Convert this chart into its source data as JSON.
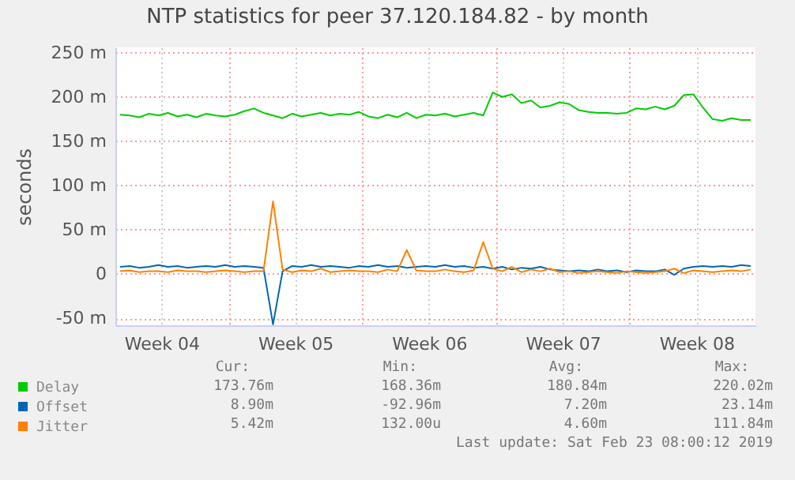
{
  "chart_data": {
    "type": "line",
    "title": "NTP statistics for peer 37.120.184.82 - by month",
    "ylabel": "seconds",
    "x": [
      "2019-01-21T08:00",
      "2019-01-21T20:00",
      "2019-01-22T08:00",
      "2019-01-22T20:00",
      "2019-01-23T08:00",
      "2019-01-23T20:00",
      "2019-01-24T08:00",
      "2019-01-24T20:00",
      "2019-01-25T08:00",
      "2019-01-25T20:00",
      "2019-01-26T08:00",
      "2019-01-26T20:00",
      "2019-01-27T08:00",
      "2019-01-27T20:00",
      "2019-01-28T08:00",
      "2019-01-28T20:00",
      "2019-01-29T08:00",
      "2019-01-29T20:00",
      "2019-01-30T08:00",
      "2019-01-30T20:00",
      "2019-01-31T08:00",
      "2019-01-31T20:00",
      "2019-02-01T08:00",
      "2019-02-01T20:00",
      "2019-02-02T08:00",
      "2019-02-02T20:00",
      "2019-02-03T08:00",
      "2019-02-03T20:00",
      "2019-02-04T08:00",
      "2019-02-04T20:00",
      "2019-02-05T08:00",
      "2019-02-05T20:00",
      "2019-02-06T08:00",
      "2019-02-06T20:00",
      "2019-02-07T08:00",
      "2019-02-07T20:00",
      "2019-02-08T08:00",
      "2019-02-08T20:00",
      "2019-02-09T08:00",
      "2019-02-09T20:00",
      "2019-02-10T08:00",
      "2019-02-10T20:00",
      "2019-02-11T08:00",
      "2019-02-11T20:00",
      "2019-02-12T08:00",
      "2019-02-12T20:00",
      "2019-02-13T08:00",
      "2019-02-13T20:00",
      "2019-02-14T08:00",
      "2019-02-14T20:00",
      "2019-02-15T08:00",
      "2019-02-15T20:00",
      "2019-02-16T08:00",
      "2019-02-16T20:00",
      "2019-02-17T08:00",
      "2019-02-17T20:00",
      "2019-02-18T08:00",
      "2019-02-18T20:00",
      "2019-02-19T08:00",
      "2019-02-19T20:00",
      "2019-02-20T08:00",
      "2019-02-20T20:00",
      "2019-02-21T08:00",
      "2019-02-21T20:00",
      "2019-02-22T08:00",
      "2019-02-22T20:00",
      "2019-02-23T08:00"
    ],
    "xlim": [
      "2019-01-21T02:00",
      "2019-02-23T14:00"
    ],
    "xticks": [
      {
        "value": "2019-01-23T12:00",
        "label": "Week 04"
      },
      {
        "value": "2019-01-27T00:00",
        "label": null
      },
      {
        "value": "2019-01-30T12:00",
        "label": "Week 05"
      },
      {
        "value": "2019-02-03T00:00",
        "label": null
      },
      {
        "value": "2019-02-06T12:00",
        "label": "Week 06"
      },
      {
        "value": "2019-02-10T00:00",
        "label": null
      },
      {
        "value": "2019-02-13T12:00",
        "label": "Week 07"
      },
      {
        "value": "2019-02-17T00:00",
        "label": null
      },
      {
        "value": "2019-02-20T12:00",
        "label": "Week 08"
      }
    ],
    "ylim": [
      -58,
      256
    ],
    "yticks": [
      {
        "value": -50,
        "label": "-50 m"
      },
      0,
      {
        "value": 50,
        "label": "50 m"
      },
      {
        "value": 100,
        "label": "100 m"
      },
      {
        "value": 150,
        "label": "150 m"
      },
      {
        "value": 200,
        "label": "200 m"
      },
      {
        "value": 250,
        "label": "250 m"
      }
    ],
    "grid": true,
    "legend": "bottom",
    "series": [
      {
        "name": "Delay",
        "color": "#00cc00",
        "values": [
          180,
          179,
          177,
          181,
          179,
          182,
          178,
          180,
          177,
          181,
          179,
          178,
          180,
          184,
          187,
          182,
          179,
          176,
          181,
          178,
          180,
          182,
          179,
          181,
          180,
          183,
          178,
          176,
          180,
          177,
          182,
          176,
          180,
          179,
          181,
          178,
          180,
          182,
          179,
          205,
          200,
          203,
          193,
          196,
          188,
          190,
          194,
          192,
          185,
          183,
          182,
          182,
          181,
          182,
          187,
          186,
          189,
          186,
          190,
          202,
          203,
          188,
          175,
          173,
          176,
          174,
          174
        ]
      },
      {
        "name": "Offset",
        "color": "#0066b3",
        "values": [
          8,
          9,
          7,
          8,
          10,
          8,
          9,
          7,
          8,
          9,
          8,
          10,
          8,
          9,
          8,
          7,
          -57,
          3,
          9,
          8,
          10,
          8,
          9,
          8,
          7,
          9,
          8,
          10,
          8,
          9,
          7,
          8,
          9,
          8,
          10,
          8,
          9,
          7,
          8,
          6,
          8,
          5,
          7,
          6,
          8,
          5,
          4,
          3,
          4,
          3,
          5,
          3,
          4,
          2,
          4,
          3,
          3,
          5,
          -1,
          6,
          8,
          9,
          8,
          9,
          8,
          10,
          9
        ]
      },
      {
        "name": "Jitter",
        "color": "#ff8000",
        "values": [
          3,
          4,
          2,
          3,
          3,
          2,
          4,
          3,
          3,
          2,
          3,
          4,
          3,
          2,
          3,
          3,
          82,
          5,
          2,
          4,
          3,
          6,
          2,
          3,
          4,
          3,
          3,
          2,
          5,
          3,
          27,
          4,
          3,
          3,
          5,
          3,
          2,
          4,
          36,
          6,
          3,
          8,
          2,
          5,
          3,
          6,
          2,
          3,
          1,
          2,
          3,
          2,
          1,
          3,
          2,
          1,
          2,
          3,
          6,
          1,
          4,
          3,
          2,
          3,
          4,
          3,
          5
        ]
      }
    ],
    "annotations": [
      "Cur:",
      "Min:",
      "Avg:",
      "Max:",
      "173.76m",
      "168.36m",
      "180.84m",
      "220.02m",
      "8.90m",
      "-92.96m",
      "7.20m",
      "23.14m",
      "5.42m",
      "132.00u",
      "4.60m",
      "111.84m",
      "Last update: Sat Feb 23 08:00:12 2019"
    ]
  }
}
